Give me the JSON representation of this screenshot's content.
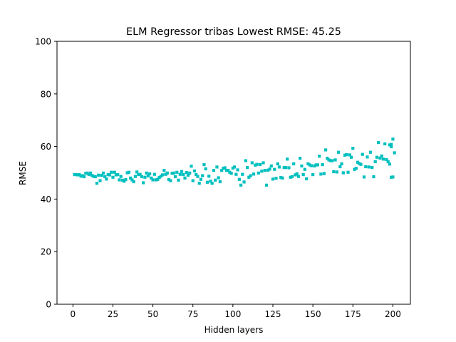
{
  "chart_data": {
    "type": "scatter",
    "title": "ELM Regressor tribas Lowest RMSE: 45.25",
    "xlabel": "Hidden layers",
    "ylabel": "RMSE",
    "xlim": [
      -9.95,
      210.95
    ],
    "ylim": [
      0,
      100
    ],
    "xticks": [
      0,
      25,
      50,
      75,
      100,
      125,
      150,
      175,
      200
    ],
    "yticks": [
      0,
      20,
      40,
      60,
      80,
      100
    ],
    "grid": false,
    "legend": "none",
    "marker": "square",
    "color": "#00bfbf",
    "series": [
      {
        "points": [
          [
            1,
            49.3
          ],
          [
            2,
            49.3
          ],
          [
            3,
            49.2
          ],
          [
            4,
            49.3
          ],
          [
            5,
            48.7
          ],
          [
            6,
            48.9
          ],
          [
            7,
            48.5
          ],
          [
            8,
            49.8
          ],
          [
            9,
            49.9
          ],
          [
            10,
            49.3
          ],
          [
            11,
            49.9
          ],
          [
            12,
            49.0
          ],
          [
            13,
            48.6
          ],
          [
            14,
            48.5
          ],
          [
            15,
            46.0
          ],
          [
            16,
            49.1
          ],
          [
            17,
            47.0
          ],
          [
            18,
            49.0
          ],
          [
            19,
            49.9
          ],
          [
            20,
            48.5
          ],
          [
            21,
            47.6
          ],
          [
            22,
            49.3
          ],
          [
            23,
            49.2
          ],
          [
            24,
            50.2
          ],
          [
            25,
            48.3
          ],
          [
            26,
            50.2
          ],
          [
            27,
            49.2
          ],
          [
            28,
            49.3
          ],
          [
            29,
            47.3
          ],
          [
            30,
            48.6
          ],
          [
            31,
            47.2
          ],
          [
            32,
            46.8
          ],
          [
            33,
            47.4
          ],
          [
            34,
            50.0
          ],
          [
            35,
            50.2
          ],
          [
            36,
            48.0
          ],
          [
            37,
            47.3
          ],
          [
            38,
            46.6
          ],
          [
            39,
            48.6
          ],
          [
            40,
            50.3
          ],
          [
            41,
            49.3
          ],
          [
            42,
            49.4
          ],
          [
            43,
            48.5
          ],
          [
            44,
            46.2
          ],
          [
            45,
            48.3
          ],
          [
            46,
            49.9
          ],
          [
            47,
            48.8
          ],
          [
            48,
            49.6
          ],
          [
            49,
            48.0
          ],
          [
            50,
            47.3
          ],
          [
            51,
            49.4
          ],
          [
            52,
            47.3
          ],
          [
            53,
            47.5
          ],
          [
            54,
            48.2
          ],
          [
            55,
            48.7
          ],
          [
            56,
            49.2
          ],
          [
            57,
            50.9
          ],
          [
            58,
            49.4
          ],
          [
            59,
            49.9
          ],
          [
            60,
            47.4
          ],
          [
            61,
            47.0
          ],
          [
            62,
            49.8
          ],
          [
            63,
            49.9
          ],
          [
            64,
            48.5
          ],
          [
            65,
            50.2
          ],
          [
            66,
            47.2
          ],
          [
            67,
            49.4
          ],
          [
            68,
            50.5
          ],
          [
            69,
            49.3
          ],
          [
            70,
            48.0
          ],
          [
            71,
            50.1
          ],
          [
            72,
            49.1
          ],
          [
            73,
            49.9
          ],
          [
            74,
            52.5
          ],
          [
            75,
            47.0
          ],
          [
            76,
            50.7
          ],
          [
            77,
            49.3
          ],
          [
            78,
            48.6
          ],
          [
            79,
            46.0
          ],
          [
            80,
            47.5
          ],
          [
            81,
            48.9
          ],
          [
            82,
            53.1
          ],
          [
            83,
            51.5
          ],
          [
            84,
            46.4
          ],
          [
            85,
            48.7
          ],
          [
            86,
            46.8
          ],
          [
            87,
            46.0
          ],
          [
            88,
            50.9
          ],
          [
            89,
            47.2
          ],
          [
            90,
            52.2
          ],
          [
            91,
            48.1
          ],
          [
            92,
            46.6
          ],
          [
            93,
            50.9
          ],
          [
            94,
            51.7
          ],
          [
            95,
            51.9
          ],
          [
            96,
            50.9
          ],
          [
            97,
            50.9
          ],
          [
            98,
            50.2
          ],
          [
            99,
            49.8
          ],
          [
            100,
            51.8
          ],
          [
            101,
            52.2
          ],
          [
            102,
            49.4
          ],
          [
            103,
            51.1
          ],
          [
            104,
            47.5
          ],
          [
            105,
            45.3
          ],
          [
            106,
            49.4
          ],
          [
            107,
            46.5
          ],
          [
            108,
            54.6
          ],
          [
            109,
            52.0
          ],
          [
            110,
            48.3
          ],
          [
            111,
            48.9
          ],
          [
            112,
            53.8
          ],
          [
            113,
            49.5
          ],
          [
            114,
            52.9
          ],
          [
            115,
            53.2
          ],
          [
            116,
            49.9
          ],
          [
            117,
            53.1
          ],
          [
            118,
            50.6
          ],
          [
            119,
            53.8
          ],
          [
            120,
            50.9
          ],
          [
            121,
            45.3
          ],
          [
            122,
            51.0
          ],
          [
            123,
            51.4
          ],
          [
            124,
            52.6
          ],
          [
            125,
            47.6
          ],
          [
            126,
            51.3
          ],
          [
            127,
            47.9
          ],
          [
            128,
            53.4
          ],
          [
            129,
            52.2
          ],
          [
            130,
            48.2
          ],
          [
            131,
            48.0
          ],
          [
            132,
            52.0
          ],
          [
            133,
            52.0
          ],
          [
            134,
            55.2
          ],
          [
            135,
            51.9
          ],
          [
            136,
            48.3
          ],
          [
            137,
            48.5
          ],
          [
            138,
            53.4
          ],
          [
            139,
            49.2
          ],
          [
            140,
            49.6
          ],
          [
            141,
            48.6
          ],
          [
            142,
            55.5
          ],
          [
            143,
            52.6
          ],
          [
            144,
            49.3
          ],
          [
            145,
            51.3
          ],
          [
            146,
            47.7
          ],
          [
            147,
            53.4
          ],
          [
            148,
            53.0
          ],
          [
            149,
            52.7
          ],
          [
            150,
            49.3
          ],
          [
            151,
            52.6
          ],
          [
            152,
            53.0
          ],
          [
            153,
            53.0
          ],
          [
            154,
            56.3
          ],
          [
            155,
            49.5
          ],
          [
            156,
            53.1
          ],
          [
            157,
            49.7
          ],
          [
            158,
            58.7
          ],
          [
            159,
            55.5
          ],
          [
            160,
            54.9
          ],
          [
            161,
            54.6
          ],
          [
            162,
            54.6
          ],
          [
            163,
            50.4
          ],
          [
            164,
            54.9
          ],
          [
            165,
            50.3
          ],
          [
            166,
            57.8
          ],
          [
            167,
            52.3
          ],
          [
            168,
            53.4
          ],
          [
            169,
            50.0
          ],
          [
            170,
            56.7
          ],
          [
            171,
            56.9
          ],
          [
            172,
            50.2
          ],
          [
            173,
            56.8
          ],
          [
            174,
            55.9
          ],
          [
            175,
            59.3
          ],
          [
            176,
            51.3
          ],
          [
            177,
            51.7
          ],
          [
            178,
            54.0
          ],
          [
            179,
            53.5
          ],
          [
            180,
            53.2
          ],
          [
            181,
            57.0
          ],
          [
            182,
            48.4
          ],
          [
            183,
            52.3
          ],
          [
            184,
            56.0
          ],
          [
            185,
            52.2
          ],
          [
            186,
            57.8
          ],
          [
            187,
            52.0
          ],
          [
            188,
            48.5
          ],
          [
            189,
            54.2
          ],
          [
            190,
            55.9
          ],
          [
            191,
            61.5
          ],
          [
            192,
            55.6
          ],
          [
            193,
            56.4
          ],
          [
            194,
            55.2
          ],
          [
            195,
            61.0
          ],
          [
            196,
            55.0
          ],
          [
            197,
            54.2
          ],
          [
            198,
            53.3
          ],
          [
            199,
            59.9
          ],
          [
            200,
            62.8
          ]
        ],
        "extra_points": [
          [
            198,
            60.6
          ],
          [
            199,
            60.8
          ],
          [
            200,
            48.4
          ],
          [
            201,
            57.6
          ],
          [
            199,
            48.3
          ]
        ]
      }
    ],
    "lowest_rmse": 45.25
  }
}
